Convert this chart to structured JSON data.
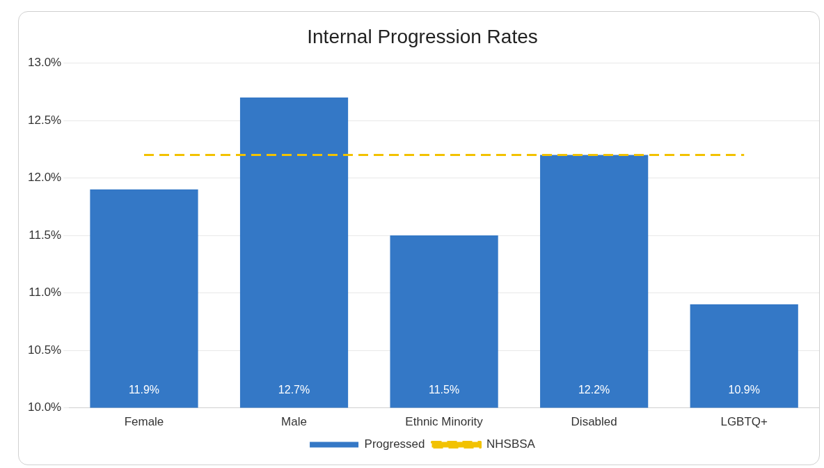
{
  "chart_data": {
    "type": "bar",
    "title": "Internal Progression Rates",
    "categories": [
      "Female",
      "Male",
      "Ethnic Minority",
      "Disabled",
      "LGBTQ+"
    ],
    "series": [
      {
        "name": "Progressed",
        "color": "#3478c6",
        "values": [
          11.9,
          12.7,
          11.5,
          12.2,
          10.9
        ],
        "value_labels": [
          "11.9%",
          "12.7%",
          "11.5%",
          "12.2%",
          "10.9%"
        ]
      },
      {
        "name": "NHSBSA",
        "type": "line",
        "color": "#f2c200",
        "values": [
          12.2,
          12.2,
          12.2,
          12.2,
          12.2
        ],
        "line_style": "dashed",
        "marker": "none"
      }
    ],
    "ylim": [
      10,
      13
    ],
    "yticks": [
      {
        "value": 10,
        "label": "10.0%"
      },
      {
        "value": 10.5,
        "label": "10.5%"
      },
      {
        "value": 11,
        "label": "11.0%"
      },
      {
        "value": 11.5,
        "label": "11.5%"
      },
      {
        "value": 12,
        "label": "12.0%"
      },
      {
        "value": 12.5,
        "label": "12.5%"
      },
      {
        "value": 13,
        "label": "13.0%"
      }
    ],
    "grid": "y",
    "legend": "bottom"
  }
}
